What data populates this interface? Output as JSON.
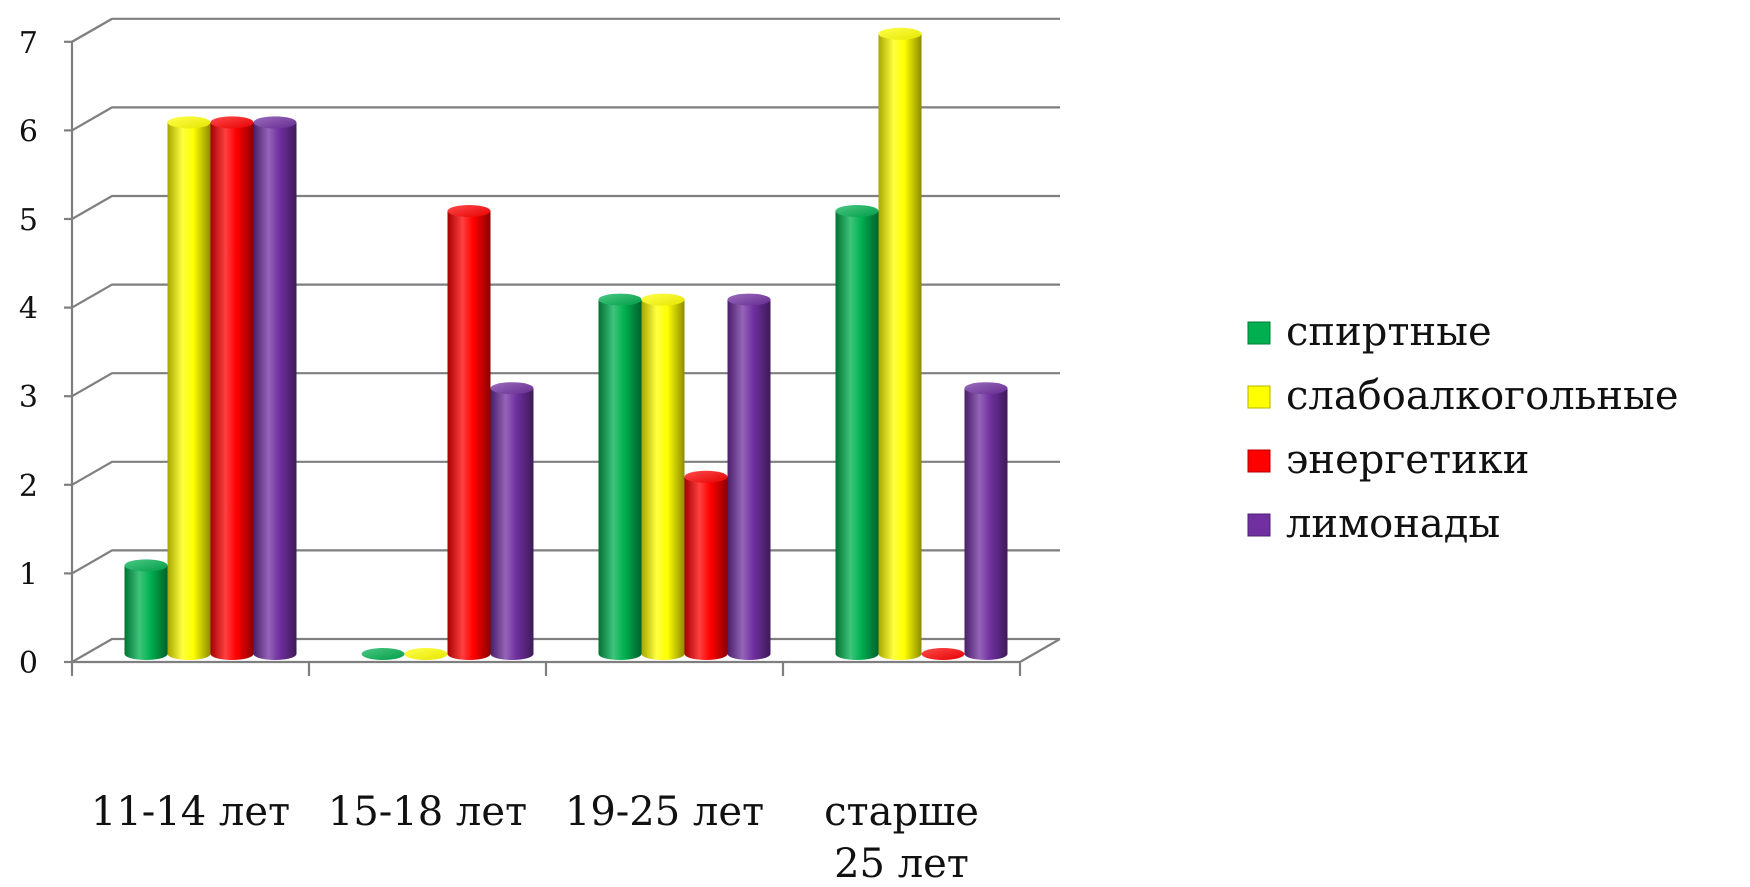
{
  "chart_data": {
    "type": "bar",
    "categories": [
      [
        "11-14 лет"
      ],
      [
        "15-18 лет"
      ],
      [
        "19-25 лет"
      ],
      [
        "старше",
        "25 лет"
      ]
    ],
    "series": [
      {
        "name": "спиртные",
        "values": [
          1,
          0,
          4,
          5
        ],
        "color": "#00b050"
      },
      {
        "name": "слабоалкогольные",
        "values": [
          6,
          0,
          4,
          7
        ],
        "color": "#ffff00"
      },
      {
        "name": "энергетики",
        "values": [
          6,
          5,
          2,
          0
        ],
        "color": "#ff0000"
      },
      {
        "name": "лимонады",
        "values": [
          6,
          3,
          4,
          3
        ],
        "color": "#7030a0"
      }
    ],
    "ylim": [
      0,
      7
    ],
    "yticks": [
      "0",
      "1",
      "2",
      "3",
      "4",
      "5",
      "6",
      "7"
    ],
    "grid": true,
    "legend_position": "right"
  }
}
